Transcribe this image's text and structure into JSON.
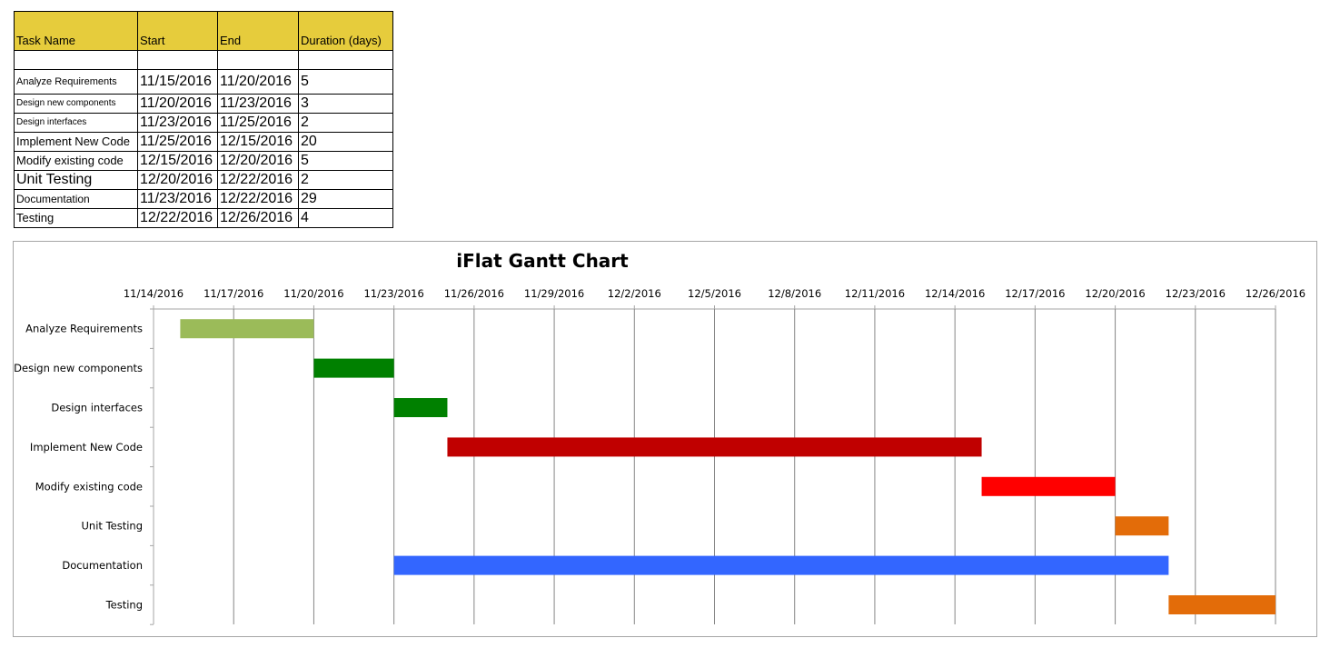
{
  "table": {
    "headers": [
      "Task Name",
      "Start",
      "End",
      "Duration (days)"
    ],
    "header_bg": "#e6cc3c",
    "rows": [
      {
        "name": "Analyze Requirements",
        "start": "11/15/2016",
        "end": "11/20/2016",
        "duration": "5"
      },
      {
        "name": "Design new components",
        "start": "11/20/2016",
        "end": "11/23/2016",
        "duration": "3"
      },
      {
        "name": "Design interfaces",
        "start": "11/23/2016",
        "end": "11/25/2016",
        "duration": "2"
      },
      {
        "name": "Implement New Code",
        "start": "11/25/2016",
        "end": "12/15/2016",
        "duration": "20"
      },
      {
        "name": "Modify existing code",
        "start": "12/15/2016",
        "end": "12/20/2016",
        "duration": "5"
      },
      {
        "name": "Unit Testing",
        "start": "12/20/2016",
        "end": "12/22/2016",
        "duration": "2"
      },
      {
        "name": "Documentation",
        "start": "11/23/2016",
        "end": "12/22/2016",
        "duration": "29"
      },
      {
        "name": "Testing",
        "start": "12/22/2016",
        "end": "12/26/2016",
        "duration": "4"
      }
    ]
  },
  "chart_data": {
    "type": "gantt",
    "title": "iFlat Gantt Chart",
    "x_axis": {
      "min": "11/14/2016",
      "max": "12/26/2016",
      "tick_labels": [
        "11/14/2016",
        "11/17/2016",
        "11/20/2016",
        "11/23/2016",
        "11/26/2016",
        "11/29/2016",
        "12/2/2016",
        "12/5/2016",
        "12/8/2016",
        "12/11/2016",
        "12/14/2016",
        "12/17/2016",
        "12/20/2016",
        "12/23/2016",
        "12/26/2016"
      ],
      "position": "top",
      "gridlines": true
    },
    "tasks": [
      {
        "name": "Analyze Requirements",
        "start_day": 1,
        "duration": 5,
        "color": "#9bbb59"
      },
      {
        "name": "Design new components",
        "start_day": 6,
        "duration": 3,
        "color": "#008000"
      },
      {
        "name": "Design interfaces",
        "start_day": 9,
        "duration": 2,
        "color": "#008000"
      },
      {
        "name": "Implement New Code",
        "start_day": 11,
        "duration": 20,
        "color": "#c00000"
      },
      {
        "name": "Modify existing code",
        "start_day": 31,
        "duration": 5,
        "color": "#ff0000"
      },
      {
        "name": "Unit Testing",
        "start_day": 36,
        "duration": 2,
        "color": "#e36c09"
      },
      {
        "name": "Documentation",
        "start_day": 9,
        "duration": 29,
        "color": "#3366ff"
      },
      {
        "name": "Testing",
        "start_day": 38,
        "duration": 4,
        "color": "#e36c09"
      }
    ],
    "total_days": 42
  }
}
